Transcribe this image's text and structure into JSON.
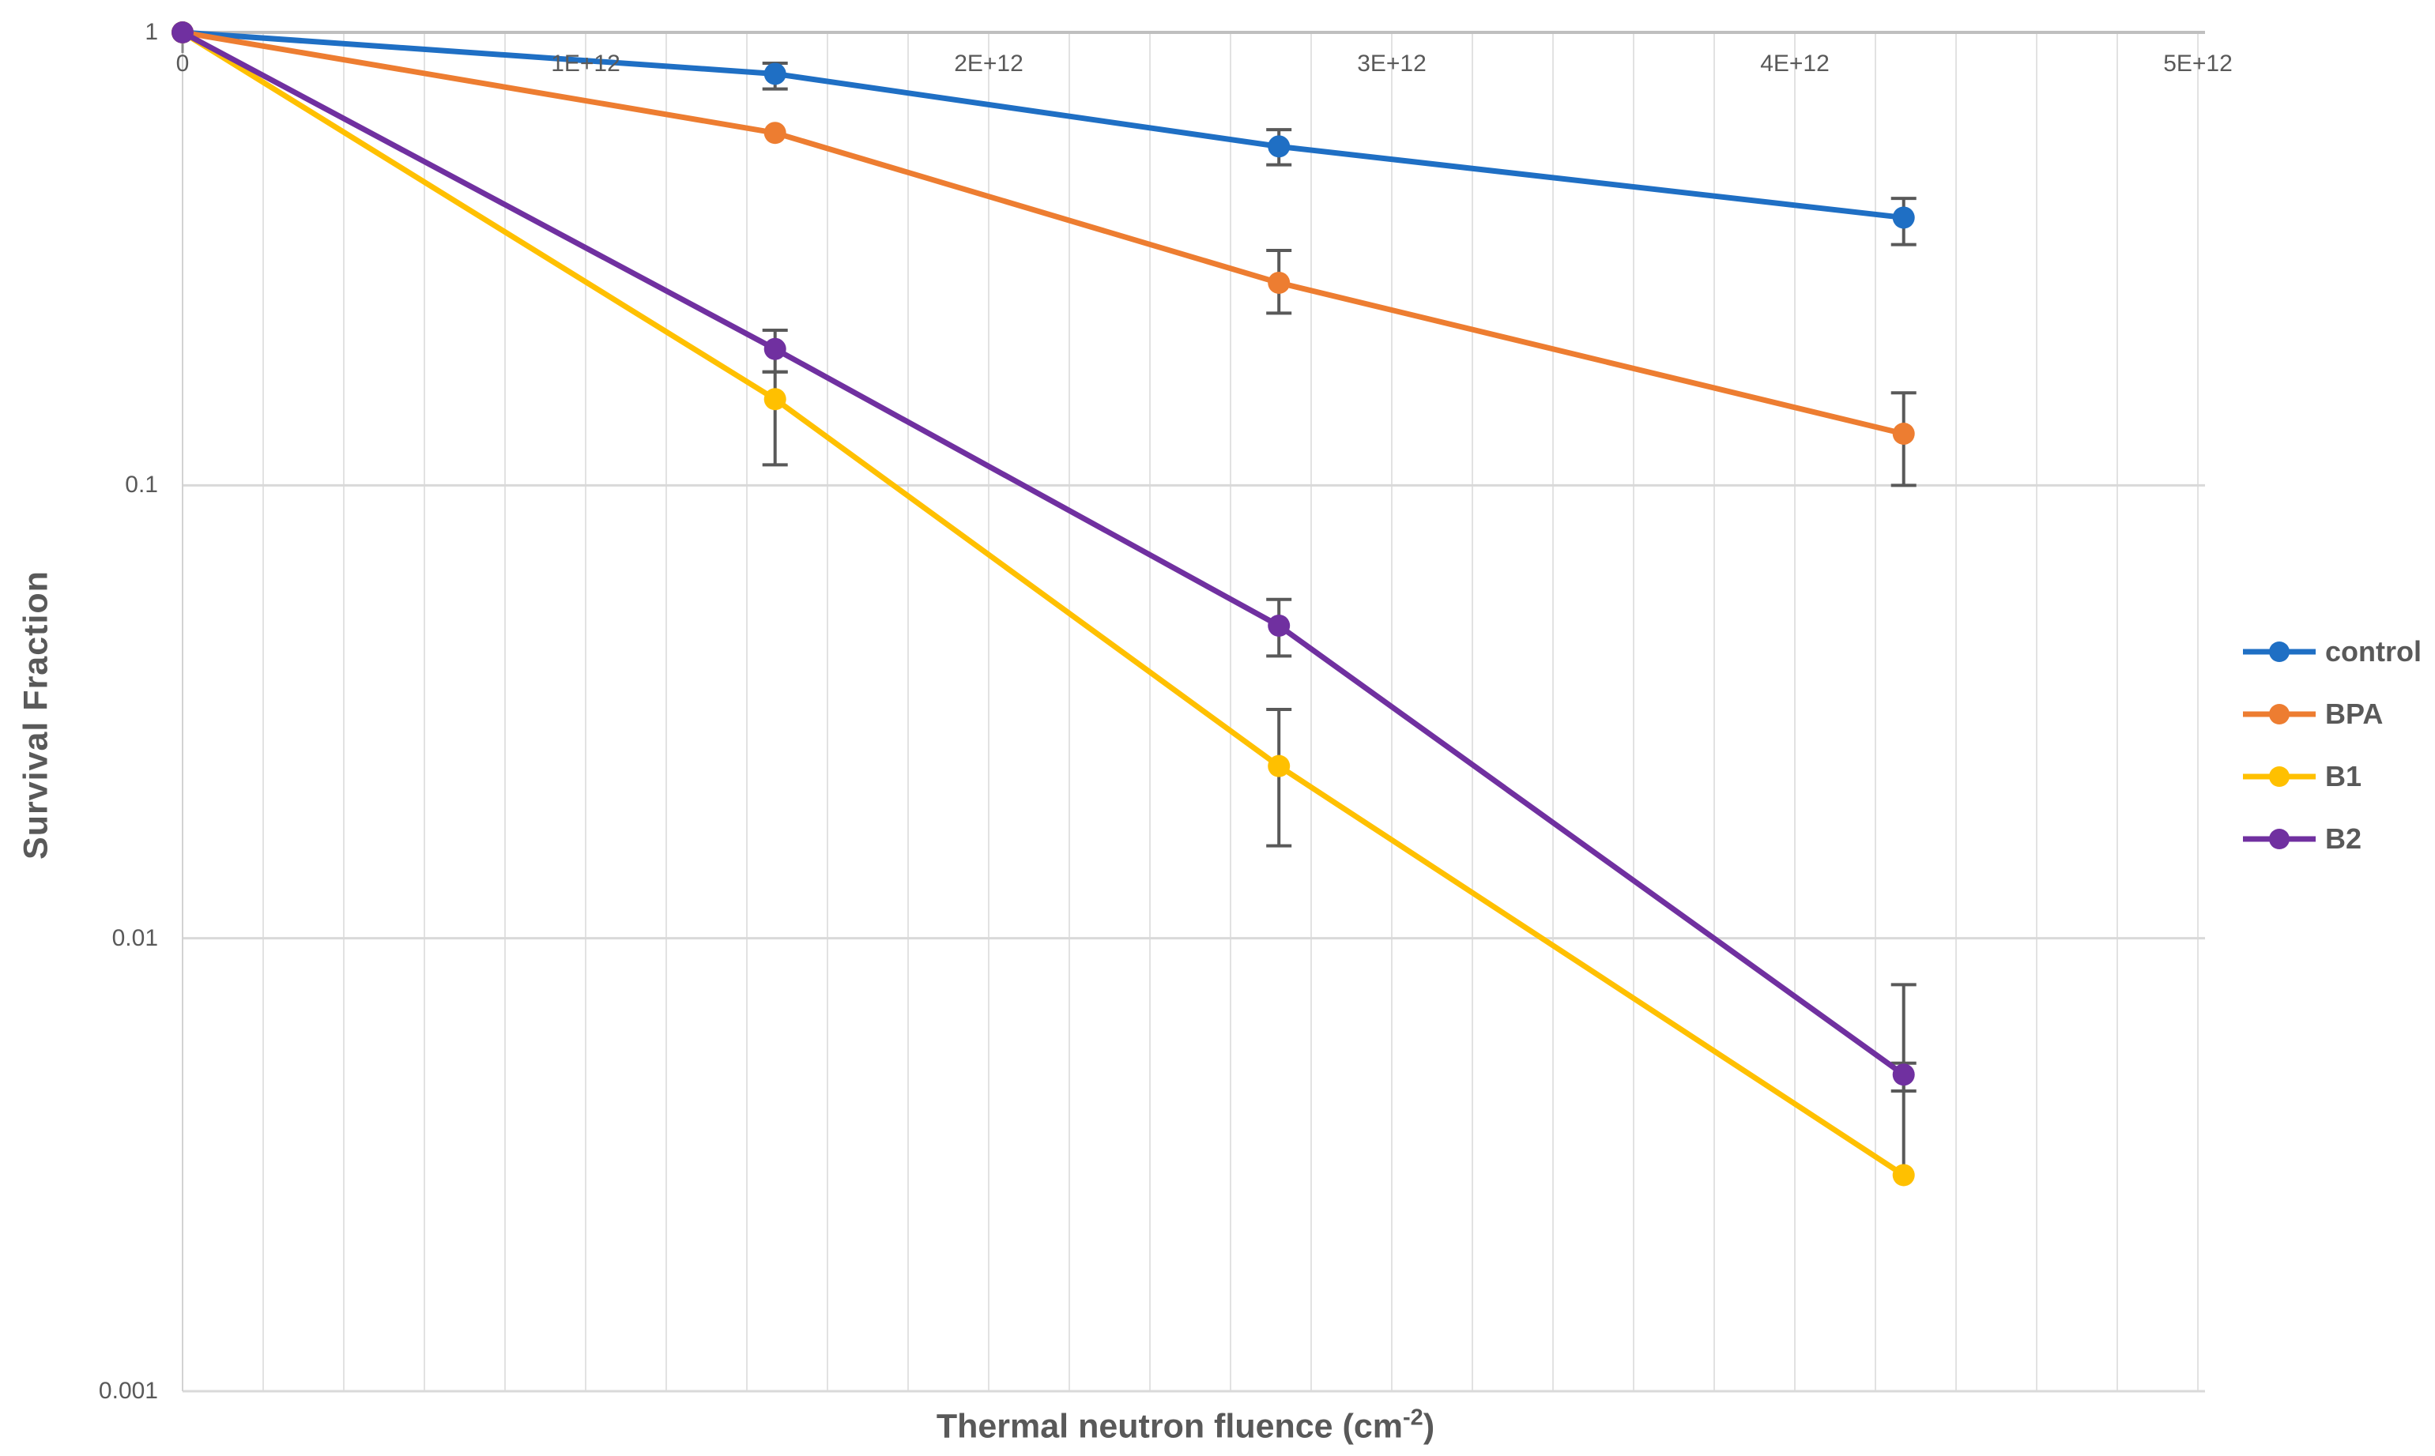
{
  "page": {
    "background": "#FFFFFF"
  },
  "style": {
    "text_color": "#595959",
    "error_bar_color": "#595959",
    "minor_gridline_color": "#E2E2E2",
    "decade_gridline_color": "#D9D9D9",
    "axis_line_color": "#BFBFBF",
    "y_axis_line_color": "#D2D2D2",
    "origin_tick_color": "#898989"
  },
  "chart_data": {
    "type": "line",
    "title": "",
    "ylabel": "Survival Fraction",
    "xlabel": {
      "text": "Thermal neutron fluence (cm",
      "superscript": "-2",
      "suffix": ")"
    },
    "x_axis": {
      "min": 0,
      "max": 5000000000000.0,
      "minor_gridline_step": 200000000000.0,
      "ticks": [
        {
          "value": 0,
          "label": "0"
        },
        {
          "value": 1000000000000.0,
          "label": "1E+12"
        },
        {
          "value": 2000000000000.0,
          "label": "2E+12"
        },
        {
          "value": 3000000000000.0,
          "label": "3E+12"
        },
        {
          "value": 4000000000000.0,
          "label": "4E+12"
        },
        {
          "value": 5000000000000.0,
          "label": "5E+12"
        }
      ]
    },
    "y_axis": {
      "scale": "log",
      "min": 0.001,
      "max": 1,
      "ticks": [
        {
          "value": 1,
          "label": "1"
        },
        {
          "value": 0.1,
          "label": "0.1"
        },
        {
          "value": 0.01,
          "label": "0.01"
        },
        {
          "value": 0.001,
          "label": "0.001"
        }
      ]
    },
    "x": [
      0,
      1470000000000.0,
      2720000000000.0,
      4270000000000.0
    ],
    "series": [
      {
        "name": "control",
        "color": "#1F6FC4",
        "y": [
          1,
          0.81,
          0.56,
          0.39
        ],
        "err_lo": [
          null,
          0.75,
          0.51,
          0.34
        ],
        "err_hi": [
          null,
          0.855,
          0.61,
          0.43
        ]
      },
      {
        "name": "BPA",
        "color": "#ED7D31",
        "y": [
          1,
          0.6,
          0.28,
          0.13
        ],
        "err_lo": [
          null,
          null,
          0.24,
          0.1
        ],
        "err_hi": [
          null,
          null,
          0.33,
          0.16
        ]
      },
      {
        "name": "B1",
        "color": "#FFC000",
        "y": [
          1,
          0.155,
          0.024,
          0.003
        ],
        "err_lo": [
          null,
          0.111,
          0.016,
          null
        ],
        "err_hi": [
          null,
          0.178,
          0.032,
          0.0053
        ]
      },
      {
        "name": "B2",
        "color": "#7030A0",
        "y": [
          1,
          0.2,
          0.049,
          0.005
        ],
        "err_lo": [
          null,
          0.178,
          0.042,
          0.0046
        ],
        "err_hi": [
          null,
          0.22,
          0.056,
          0.0079
        ]
      }
    ],
    "legend": {
      "position": "right",
      "items": [
        "control",
        "BPA",
        "B1",
        "B2"
      ]
    }
  }
}
